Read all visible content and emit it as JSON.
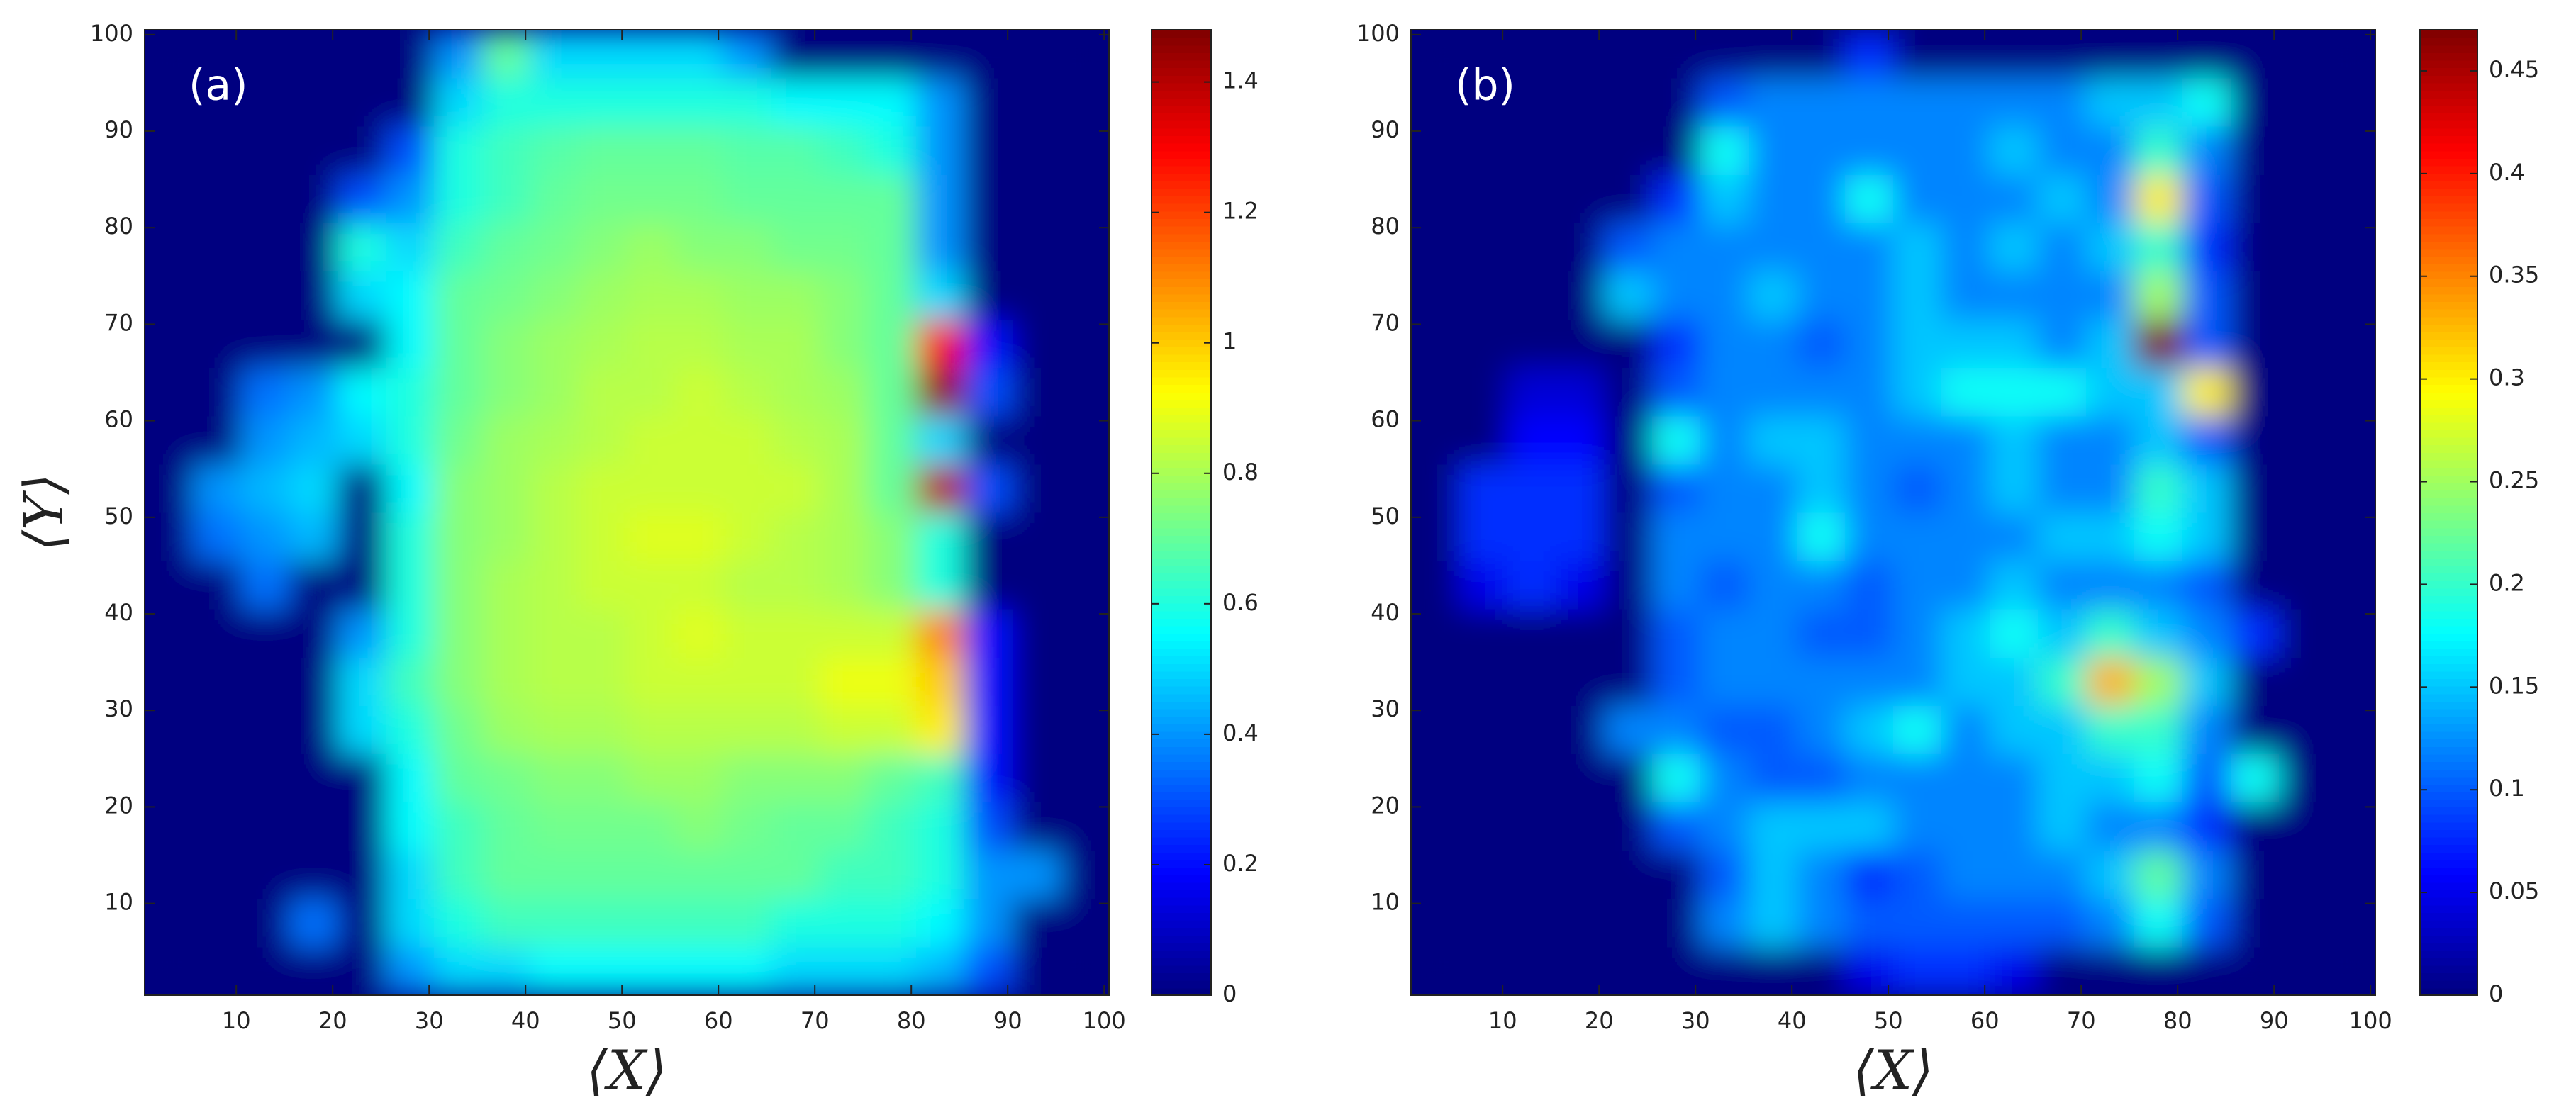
{
  "chart_data": [
    {
      "type": "heatmap",
      "title": "(a)",
      "xlabel": "⟨X⟩",
      "ylabel": "⟨Y⟩",
      "colormap": "jet",
      "x": [
        3,
        8,
        13,
        18,
        23,
        28,
        33,
        38,
        43,
        48,
        53,
        58,
        63,
        68,
        73,
        78,
        83,
        88,
        93,
        98
      ],
      "y": [
        3,
        8,
        13,
        18,
        23,
        28,
        33,
        38,
        43,
        48,
        53,
        58,
        63,
        68,
        73,
        78,
        83,
        88,
        93,
        98
      ],
      "z": [
        [
          0,
          0,
          0,
          0,
          0,
          0.4,
          0.5,
          0.5,
          0.55,
          0.55,
          0.55,
          0.55,
          0.55,
          0.5,
          0.5,
          0.5,
          0.45,
          0.3,
          0,
          0
        ],
        [
          0,
          0,
          0,
          0.35,
          0,
          0.5,
          0.6,
          0.65,
          0.65,
          0.65,
          0.65,
          0.65,
          0.65,
          0.6,
          0.6,
          0.6,
          0.55,
          0.4,
          0,
          0
        ],
        [
          0,
          0,
          0,
          0,
          0,
          0.5,
          0.65,
          0.7,
          0.7,
          0.7,
          0.7,
          0.7,
          0.7,
          0.7,
          0.65,
          0.65,
          0.6,
          0.4,
          0.4,
          0
        ],
        [
          0,
          0,
          0,
          0,
          0,
          0.55,
          0.65,
          0.7,
          0.72,
          0.72,
          0.72,
          0.75,
          0.72,
          0.7,
          0.7,
          0.65,
          0.6,
          0.3,
          0,
          0
        ],
        [
          0,
          0,
          0,
          0,
          0,
          0.55,
          0.7,
          0.72,
          0.75,
          0.75,
          0.78,
          0.78,
          0.75,
          0.75,
          0.75,
          0.7,
          0.65,
          0.2,
          0,
          0
        ],
        [
          0,
          0,
          0,
          0,
          0.5,
          0.6,
          0.72,
          0.78,
          0.8,
          0.8,
          0.82,
          0.82,
          0.82,
          0.82,
          0.85,
          0.85,
          0.95,
          0.2,
          0,
          0
        ],
        [
          0,
          0,
          0,
          0,
          0.5,
          0.65,
          0.75,
          0.8,
          0.82,
          0.82,
          0.85,
          0.85,
          0.85,
          0.85,
          0.9,
          0.9,
          1.0,
          0.2,
          0,
          0
        ],
        [
          0,
          0,
          0,
          0,
          0.4,
          0.6,
          0.75,
          0.8,
          0.82,
          0.82,
          0.85,
          0.88,
          0.85,
          0.85,
          0.85,
          0.85,
          1.1,
          0.2,
          0,
          0
        ],
        [
          0,
          0,
          0.35,
          0,
          0,
          0.6,
          0.75,
          0.8,
          0.82,
          0.85,
          0.85,
          0.85,
          0.82,
          0.82,
          0.8,
          0.75,
          0.6,
          0,
          0,
          0
        ],
        [
          0,
          0.35,
          0.4,
          0.45,
          0,
          0.6,
          0.75,
          0.78,
          0.82,
          0.85,
          0.88,
          0.88,
          0.85,
          0.82,
          0.8,
          0.75,
          0.6,
          0,
          0,
          0
        ],
        [
          0,
          0.4,
          0.45,
          0.5,
          0,
          0.55,
          0.75,
          0.78,
          0.82,
          0.85,
          0.85,
          0.85,
          0.85,
          0.85,
          0.8,
          0.7,
          1.4,
          0.3,
          0,
          0
        ],
        [
          0,
          0,
          0.4,
          0.45,
          0.5,
          0.6,
          0.72,
          0.78,
          0.8,
          0.82,
          0.85,
          0.85,
          0.85,
          0.82,
          0.8,
          0.7,
          0.5,
          0,
          0,
          0
        ],
        [
          0,
          0,
          0.35,
          0.4,
          0.55,
          0.6,
          0.7,
          0.75,
          0.78,
          0.82,
          0.82,
          0.85,
          0.82,
          0.8,
          0.78,
          0.7,
          1.45,
          0.3,
          0,
          0
        ],
        [
          0,
          0,
          0,
          0,
          0,
          0.55,
          0.7,
          0.75,
          0.78,
          0.8,
          0.82,
          0.82,
          0.8,
          0.8,
          0.75,
          0.7,
          1.3,
          0.2,
          0,
          0
        ],
        [
          0,
          0,
          0,
          0,
          0.5,
          0.55,
          0.7,
          0.72,
          0.75,
          0.78,
          0.8,
          0.8,
          0.78,
          0.78,
          0.75,
          0.7,
          0.5,
          0,
          0,
          0
        ],
        [
          0,
          0,
          0,
          0,
          0.6,
          0.5,
          0.65,
          0.7,
          0.72,
          0.75,
          0.78,
          0.75,
          0.75,
          0.72,
          0.72,
          0.7,
          0.4,
          0,
          0,
          0
        ],
        [
          0,
          0,
          0,
          0,
          0.3,
          0.4,
          0.6,
          0.65,
          0.7,
          0.72,
          0.72,
          0.72,
          0.7,
          0.7,
          0.7,
          0.7,
          0.4,
          0,
          0,
          0
        ],
        [
          0,
          0,
          0,
          0,
          0,
          0.3,
          0.6,
          0.65,
          0.68,
          0.7,
          0.7,
          0.7,
          0.68,
          0.68,
          0.65,
          0.6,
          0.4,
          0,
          0,
          0
        ],
        [
          0,
          0,
          0,
          0,
          0,
          0,
          0.5,
          0.6,
          0.6,
          0.6,
          0.6,
          0.6,
          0.6,
          0.55,
          0.55,
          0.55,
          0.4,
          0,
          0,
          0
        ],
        [
          0,
          0,
          0,
          0,
          0,
          0,
          0.4,
          0.7,
          0.5,
          0.5,
          0.5,
          0.5,
          0.4,
          0,
          0,
          0,
          0,
          0,
          0,
          0
        ]
      ],
      "xlim": [
        0.5,
        100.5
      ],
      "ylim": [
        0.5,
        100.5
      ],
      "xticks": [
        10,
        20,
        30,
        40,
        50,
        60,
        70,
        80,
        90,
        100
      ],
      "yticks": [
        10,
        20,
        30,
        40,
        50,
        60,
        70,
        80,
        90,
        100
      ],
      "clim": [
        0,
        1.48
      ],
      "cticks": [
        0,
        0.2,
        0.4,
        0.6,
        0.8,
        1,
        1.2,
        1.4
      ]
    },
    {
      "type": "heatmap",
      "title": "(b)",
      "xlabel": "⟨X⟩",
      "colormap": "jet",
      "x": [
        3,
        8,
        13,
        18,
        23,
        28,
        33,
        38,
        43,
        48,
        53,
        58,
        63,
        68,
        73,
        78,
        83,
        88,
        93,
        98
      ],
      "y": [
        3,
        8,
        13,
        18,
        23,
        28,
        33,
        38,
        43,
        48,
        53,
        58,
        63,
        68,
        73,
        78,
        83,
        88,
        93,
        98
      ],
      "z": [
        [
          0,
          0,
          0,
          0,
          0,
          0,
          0,
          0,
          0,
          0.05,
          0.08,
          0.08,
          0.05,
          0,
          0,
          0,
          0,
          0,
          0,
          0
        ],
        [
          0,
          0,
          0,
          0,
          0,
          0,
          0.12,
          0.15,
          0.12,
          0.1,
          0.1,
          0.1,
          0.1,
          0.1,
          0.12,
          0.18,
          0.1,
          0,
          0,
          0
        ],
        [
          0,
          0,
          0,
          0,
          0,
          0,
          0.1,
          0.15,
          0.12,
          0.08,
          0.1,
          0.12,
          0.12,
          0.12,
          0.15,
          0.22,
          0.12,
          0,
          0,
          0
        ],
        [
          0,
          0,
          0,
          0,
          0,
          0.1,
          0.12,
          0.15,
          0.15,
          0.15,
          0.12,
          0.12,
          0.12,
          0.15,
          0.12,
          0.12,
          0.08,
          0,
          0,
          0
        ],
        [
          0,
          0,
          0,
          0,
          0,
          0.18,
          0.12,
          0.1,
          0.1,
          0.12,
          0.12,
          0.12,
          0.12,
          0.15,
          0.15,
          0.18,
          0.1,
          0.18,
          0,
          0
        ],
        [
          0,
          0,
          0,
          0,
          0.12,
          0.12,
          0.1,
          0.1,
          0.12,
          0.15,
          0.18,
          0.12,
          0.15,
          0.15,
          0.2,
          0.2,
          0.12,
          0,
          0,
          0
        ],
        [
          0,
          0,
          0,
          0,
          0,
          0.1,
          0.12,
          0.12,
          0.12,
          0.12,
          0.12,
          0.15,
          0.15,
          0.2,
          0.33,
          0.25,
          0.15,
          0,
          0,
          0
        ],
        [
          0,
          0,
          0,
          0,
          0,
          0.1,
          0.12,
          0.12,
          0.1,
          0.1,
          0.12,
          0.15,
          0.18,
          0.15,
          0.2,
          0.15,
          0.12,
          0.08,
          0,
          0
        ],
        [
          0,
          0.05,
          0.08,
          0.05,
          0,
          0.12,
          0.1,
          0.12,
          0.12,
          0.1,
          0.12,
          0.12,
          0.15,
          0.12,
          0.12,
          0.12,
          0.1,
          0,
          0,
          0
        ],
        [
          0,
          0.08,
          0.08,
          0.08,
          0,
          0.12,
          0.12,
          0.12,
          0.18,
          0.12,
          0.12,
          0.12,
          0.12,
          0.15,
          0.15,
          0.18,
          0.15,
          0,
          0,
          0
        ],
        [
          0,
          0.08,
          0.08,
          0.08,
          0,
          0.1,
          0.12,
          0.12,
          0.15,
          0.12,
          0.1,
          0.12,
          0.15,
          0.12,
          0.12,
          0.2,
          0.15,
          0,
          0,
          0
        ],
        [
          0,
          0,
          0.06,
          0.06,
          0,
          0.18,
          0.12,
          0.15,
          0.15,
          0.12,
          0.12,
          0.12,
          0.15,
          0.12,
          0.12,
          0.15,
          0.1,
          0,
          0,
          0
        ],
        [
          0,
          0,
          0.04,
          0.04,
          0,
          0.1,
          0.12,
          0.12,
          0.12,
          0.12,
          0.15,
          0.18,
          0.18,
          0.18,
          0.15,
          0.15,
          0.3,
          0,
          0,
          0
        ],
        [
          0,
          0,
          0,
          0,
          0,
          0.08,
          0.12,
          0.12,
          0.1,
          0.12,
          0.15,
          0.15,
          0.15,
          0.12,
          0.15,
          0.47,
          0.1,
          0,
          0,
          0
        ],
        [
          0,
          0,
          0,
          0,
          0.15,
          0.12,
          0.12,
          0.15,
          0.12,
          0.12,
          0.15,
          0.12,
          0.12,
          0.12,
          0.12,
          0.25,
          0.1,
          0,
          0,
          0
        ],
        [
          0,
          0,
          0,
          0,
          0.1,
          0.12,
          0.12,
          0.12,
          0.12,
          0.12,
          0.15,
          0.12,
          0.15,
          0.12,
          0.15,
          0.2,
          0.08,
          0,
          0,
          0
        ],
        [
          0,
          0,
          0,
          0,
          0,
          0.08,
          0.15,
          0.12,
          0.12,
          0.18,
          0.12,
          0.12,
          0.12,
          0.15,
          0.12,
          0.3,
          0.1,
          0,
          0,
          0
        ],
        [
          0,
          0,
          0,
          0,
          0,
          0,
          0.18,
          0.12,
          0.12,
          0.12,
          0.12,
          0.12,
          0.15,
          0.12,
          0.12,
          0.2,
          0.12,
          0,
          0,
          0
        ],
        [
          0,
          0,
          0,
          0,
          0,
          0,
          0.1,
          0.12,
          0.12,
          0.12,
          0.12,
          0.12,
          0.12,
          0.12,
          0.15,
          0.15,
          0.18,
          0,
          0,
          0
        ],
        [
          0,
          0,
          0,
          0,
          0,
          0,
          0,
          0,
          0,
          0.08,
          0,
          0,
          0,
          0,
          0,
          0,
          0,
          0,
          0,
          0
        ]
      ],
      "xlim": [
        0.5,
        100.5
      ],
      "ylim": [
        0.5,
        100.5
      ],
      "xticks": [
        10,
        20,
        30,
        40,
        50,
        60,
        70,
        80,
        90,
        100
      ],
      "yticks": [
        10,
        20,
        30,
        40,
        50,
        60,
        70,
        80,
        90,
        100
      ],
      "clim": [
        0,
        0.47
      ],
      "cticks": [
        0,
        0.05,
        0.1,
        0.15,
        0.2,
        0.25,
        0.3,
        0.35,
        0.4,
        0.45
      ]
    }
  ]
}
